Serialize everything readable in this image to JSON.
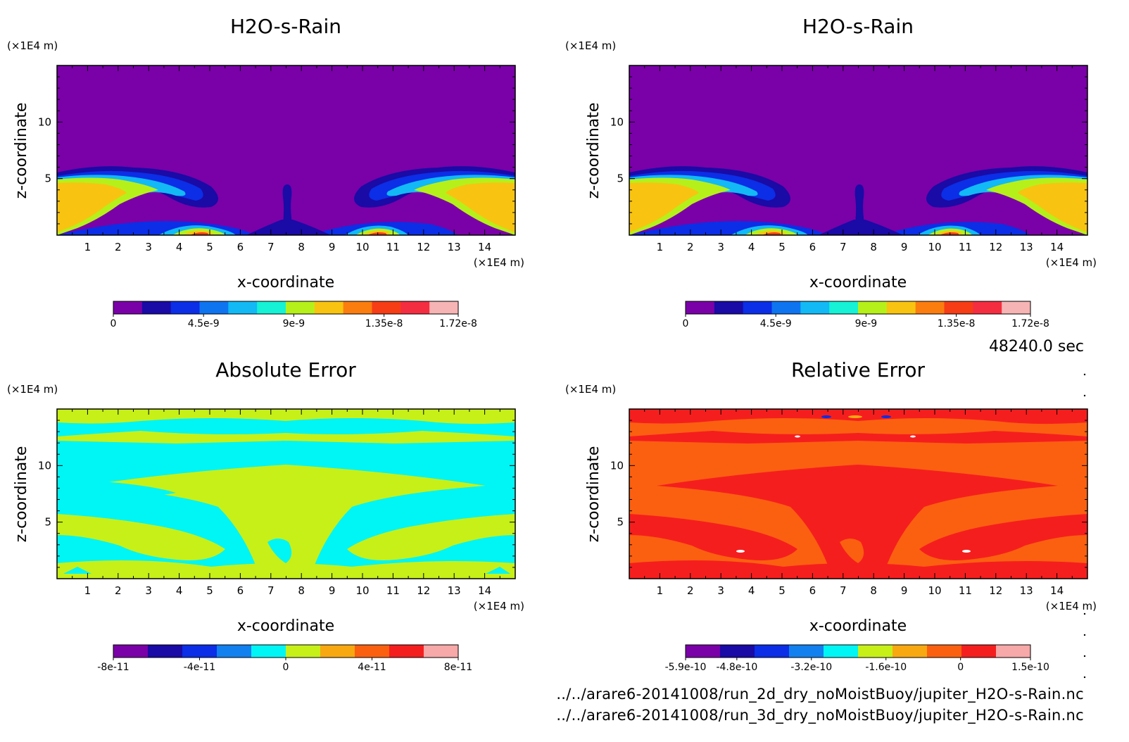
{
  "panels": [
    {
      "id": "p1",
      "title": "H2O-s-Rain",
      "xlabel": "x-coordinate",
      "ylabel": "z-coordinate",
      "x_unit": "(×1E4 m)",
      "y_unit": "(×1E4 m)",
      "type": "contour",
      "colorbar_colors": [
        "#7a00a8",
        "#1a0aa6",
        "#0b2ee6",
        "#0f74f0",
        "#12b9f5",
        "#15f2d6",
        "#b6f01a",
        "#f8c411",
        "#fb7d10",
        "#f63d16",
        "#f52d40",
        "#f7b4b4"
      ],
      "colorbar_labels": [
        "0",
        "4.5e-9",
        "9e-9",
        "1.35e-8",
        "1.72e-8"
      ],
      "colorbar_values": [
        0,
        4.5e-09,
        9e-09,
        1.35e-08,
        1.72e-08
      ]
    },
    {
      "id": "p2",
      "title": "H2O-s-Rain",
      "xlabel": "x-coordinate",
      "ylabel": "z-coordinate",
      "x_unit": "(×1E4 m)",
      "y_unit": "(×1E4 m)",
      "type": "contour",
      "colorbar_colors": [
        "#7a00a8",
        "#1a0aa6",
        "#0b2ee6",
        "#0f74f0",
        "#12b9f5",
        "#15f2d6",
        "#b6f01a",
        "#f8c411",
        "#fb7d10",
        "#f63d16",
        "#f52d40",
        "#f7b4b4"
      ],
      "colorbar_labels": [
        "0",
        "4.5e-9",
        "9e-9",
        "1.35e-8",
        "1.72e-8"
      ],
      "colorbar_values": [
        0,
        4.5e-09,
        9e-09,
        1.35e-08,
        1.72e-08
      ]
    },
    {
      "id": "p3",
      "title": "Absolute Error",
      "xlabel": "x-coordinate",
      "ylabel": "z-coordinate",
      "x_unit": "(×1E4 m)",
      "y_unit": "(×1E4 m)",
      "type": "contour",
      "colorbar_colors": [
        "#7a00a8",
        "#1a0aa6",
        "#0b2ee6",
        "#1280ee",
        "#00f5f5",
        "#c6f018",
        "#f8a810",
        "#fb6010",
        "#f51e1e",
        "#f7a8a8"
      ],
      "colorbar_labels": [
        "-8e-11",
        "-4e-11",
        "0",
        "4e-11",
        "8e-11"
      ],
      "colorbar_values": [
        -8e-11,
        -4e-11,
        0,
        4e-11,
        8e-11
      ]
    },
    {
      "id": "p4",
      "title": "Relative Error",
      "xlabel": "x-coordinate",
      "ylabel": "z-coordinate",
      "x_unit": "(×1E4 m)",
      "y_unit": "(×1E4 m)",
      "type": "contour",
      "colorbar_colors": [
        "#7a00a8",
        "#1a0aa6",
        "#0b2ee6",
        "#1280ee",
        "#00f5f5",
        "#c6f018",
        "#f8a810",
        "#fb6010",
        "#f51e1e",
        "#f7a8a8"
      ],
      "colorbar_labels": [
        "-5.9e-10",
        "-4.8e-10",
        "-3.2e-10",
        "-1.6e-10",
        "0",
        "1.5e-10"
      ],
      "colorbar_values": [
        -5.9e-10,
        -4.8e-10,
        -3.2e-10,
        -1.6e-10,
        0,
        1.5e-10
      ]
    }
  ],
  "chart_data": [
    {
      "type": "heatmap",
      "title": "H2O-s-Rain",
      "xlabel": "x-coordinate",
      "ylabel": "z-coordinate",
      "x_ticks": [
        1,
        2,
        3,
        4,
        5,
        6,
        7,
        8,
        9,
        10,
        11,
        12,
        13,
        14
      ],
      "y_ticks": [
        5,
        10
      ],
      "xlim": [
        0,
        15
      ],
      "ylim": [
        0,
        15
      ],
      "colorbar": [
        "0",
        "4.5e-9",
        "9e-9",
        "1.35e-8",
        "1.72e-8"
      ]
    },
    {
      "type": "heatmap",
      "title": "H2O-s-Rain",
      "xlabel": "x-coordinate",
      "ylabel": "z-coordinate",
      "x_ticks": [
        1,
        2,
        3,
        4,
        5,
        6,
        7,
        8,
        9,
        10,
        11,
        12,
        13,
        14
      ],
      "y_ticks": [
        5,
        10
      ],
      "xlim": [
        0,
        15
      ],
      "ylim": [
        0,
        15
      ],
      "colorbar": [
        "0",
        "4.5e-9",
        "9e-9",
        "1.35e-8",
        "1.72e-8"
      ]
    },
    {
      "type": "heatmap",
      "title": "Absolute Error",
      "xlabel": "x-coordinate",
      "ylabel": "z-coordinate",
      "x_ticks": [
        1,
        2,
        3,
        4,
        5,
        6,
        7,
        8,
        9,
        10,
        11,
        12,
        13,
        14
      ],
      "y_ticks": [
        5,
        10
      ],
      "xlim": [
        0,
        15
      ],
      "ylim": [
        0,
        15
      ],
      "colorbar": [
        "-8e-11",
        "-4e-11",
        "0",
        "4e-11",
        "8e-11"
      ]
    },
    {
      "type": "heatmap",
      "title": "Relative Error",
      "xlabel": "x-coordinate",
      "ylabel": "z-coordinate",
      "x_ticks": [
        1,
        2,
        3,
        4,
        5,
        6,
        7,
        8,
        9,
        10,
        11,
        12,
        13,
        14
      ],
      "y_ticks": [
        5,
        10
      ],
      "xlim": [
        0,
        15
      ],
      "ylim": [
        0,
        15
      ],
      "colorbar": [
        "-5.9e-10",
        "-4.8e-10",
        "-3.2e-10",
        "-1.6e-10",
        "0",
        "1.5e-10"
      ]
    }
  ],
  "x_ticks": [
    "1",
    "2",
    "3",
    "4",
    "5",
    "6",
    "7",
    "8",
    "9",
    "10",
    "11",
    "12",
    "13",
    "14"
  ],
  "y_ticks": [
    "5",
    "10"
  ],
  "time_label": "48240.0 sec",
  "files": [
    "../../arare6-20141008/run_2d_dry_noMoistBuoy/jupiter_H2O-s-Rain.nc",
    "../../arare6-20141008/run_3d_dry_noMoistBuoy/jupiter_H2O-s-Rain.nc"
  ]
}
